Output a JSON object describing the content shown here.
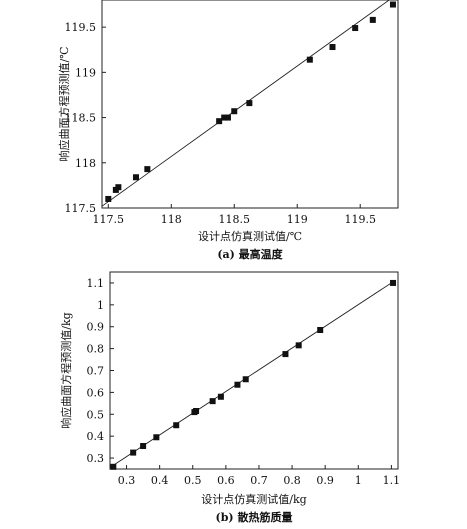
{
  "chart_data": [
    {
      "type": "scatter",
      "title": "",
      "caption": "(a) 最高温度",
      "xlabel": "设计点仿真测试值/℃",
      "ylabel": "响应曲面方程预测值/℃",
      "xlim": [
        117.45,
        119.8
      ],
      "ylim": [
        117.5,
        119.8
      ],
      "xticks": [
        117.5,
        118,
        118.5,
        119,
        119.5
      ],
      "xtick_labels": [
        "117.5",
        "118",
        "118.5",
        "119",
        "119.5"
      ],
      "yticks": [
        117.5,
        118,
        118.5,
        119,
        119.5
      ],
      "yticks_labels": [
        "117.5",
        "118",
        "118.5",
        "119",
        "119.5"
      ],
      "grid": false,
      "fit_line": [
        [
          117.45,
          117.52
        ],
        [
          119.78,
          119.85
        ]
      ],
      "points": [
        [
          117.5,
          117.6
        ],
        [
          117.56,
          117.7
        ],
        [
          117.58,
          117.73
        ],
        [
          117.72,
          117.84
        ],
        [
          117.81,
          117.93
        ],
        [
          118.38,
          118.46
        ],
        [
          118.42,
          118.5
        ],
        [
          118.45,
          118.5
        ],
        [
          118.5,
          118.57
        ],
        [
          118.62,
          118.66
        ],
        [
          119.1,
          119.14
        ],
        [
          119.28,
          119.28
        ],
        [
          119.46,
          119.49
        ],
        [
          119.6,
          119.58
        ],
        [
          119.76,
          119.75
        ]
      ]
    },
    {
      "type": "scatter",
      "title": "",
      "caption": "(b) 散热筋质量",
      "xlabel": "设计点仿真测试值/kg",
      "ylabel": "响应曲面方程预测值/kg",
      "xlim": [
        0.25,
        1.12
      ],
      "ylim": [
        0.25,
        1.15
      ],
      "xticks": [
        0.3,
        0.4,
        0.5,
        0.6,
        0.7,
        0.8,
        0.9,
        1,
        1.1
      ],
      "xtick_labels": [
        "0.3",
        "0.4",
        "0.5",
        "0.6",
        "0.7",
        "0.8",
        "0.9",
        "1",
        "1.1"
      ],
      "yticks": [
        0.3,
        0.4,
        0.5,
        0.6,
        0.7,
        0.8,
        0.9,
        1,
        1.1
      ],
      "ytick_labels": [
        "0.3",
        "0.4",
        "0.5",
        "0.6",
        "0.7",
        "0.8",
        "0.9",
        "1",
        "1.1"
      ],
      "grid": false,
      "fit_line": [
        [
          0.255,
          0.262
        ],
        [
          1.105,
          1.105
        ]
      ],
      "points": [
        [
          0.26,
          0.26
        ],
        [
          0.32,
          0.325
        ],
        [
          0.35,
          0.355
        ],
        [
          0.39,
          0.395
        ],
        [
          0.45,
          0.45
        ],
        [
          0.505,
          0.51
        ],
        [
          0.51,
          0.515
        ],
        [
          0.56,
          0.56
        ],
        [
          0.585,
          0.58
        ],
        [
          0.635,
          0.635
        ],
        [
          0.66,
          0.66
        ],
        [
          0.78,
          0.775
        ],
        [
          0.82,
          0.815
        ],
        [
          0.885,
          0.885
        ],
        [
          1.105,
          1.1
        ]
      ]
    }
  ]
}
